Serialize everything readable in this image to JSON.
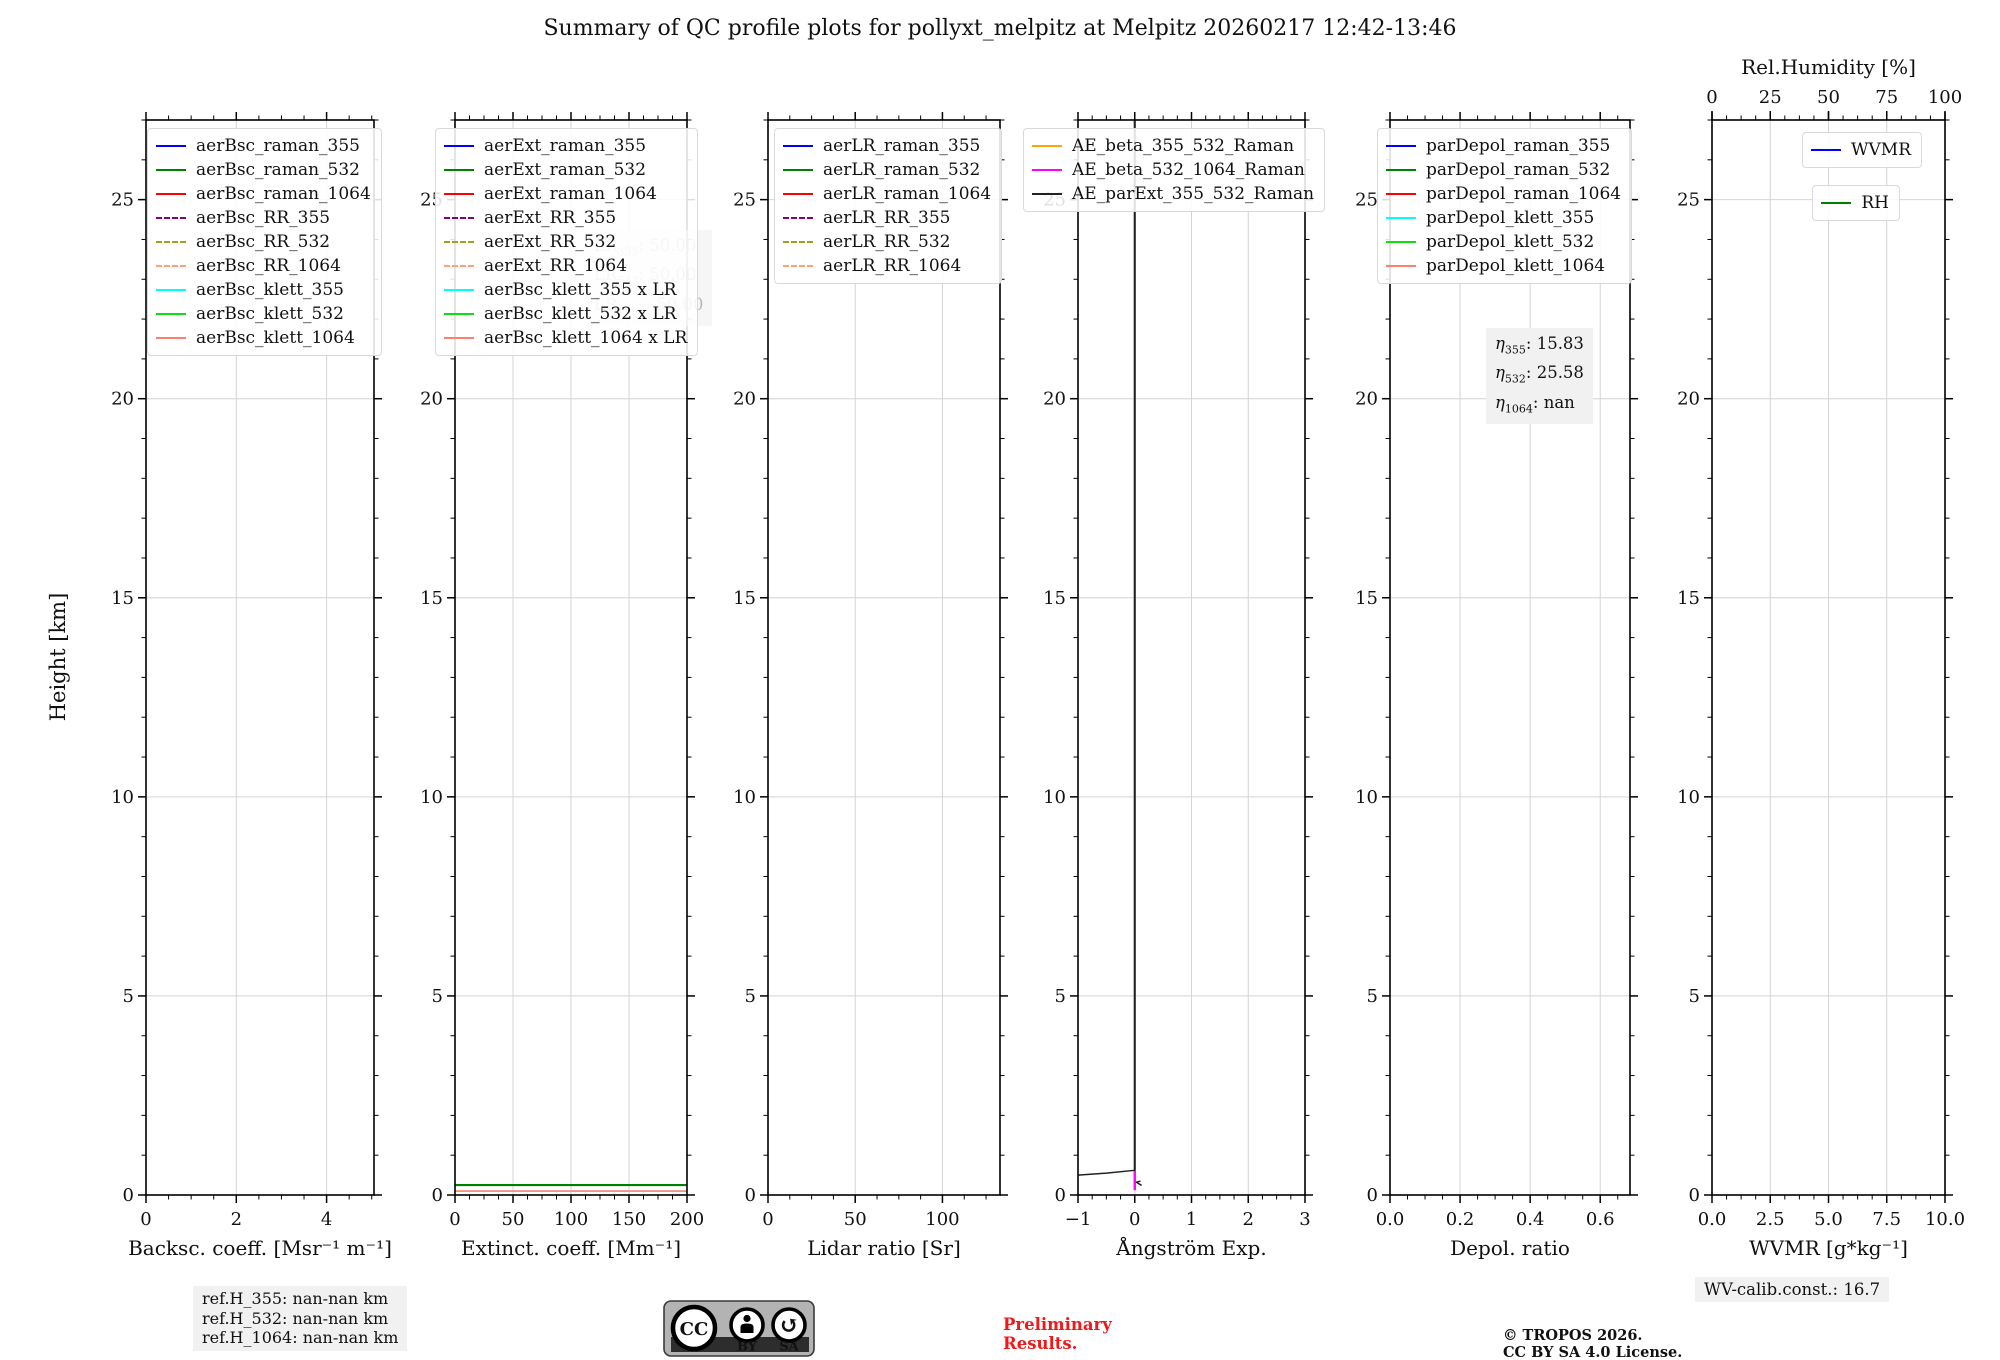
{
  "title": "Summary of QC profile plots for pollyxt_melpitz at Melpitz 20260217 12:42-13:46",
  "ylabel": "Height [km]",
  "footer": {
    "ref_h_lines": [
      "ref.H_355: nan-nan km",
      "ref.H_532: nan-nan km",
      "ref.H_1064: nan-nan km"
    ],
    "preliminary_line1": "Preliminary",
    "preliminary_line2": "Results.",
    "copyright_line1": "© TROPOS 2026.",
    "copyright_line2": "CC BY SA 4.0 License.",
    "wv_calib": "WV-calib.const.: 16.7",
    "badge": {
      "cc": "CC",
      "by": "BY",
      "sa": "SA"
    }
  },
  "chart_data": [
    {
      "id": "backscatter",
      "type": "line",
      "xlabel": "Backsc. coeff. [Msr⁻¹ m⁻¹]",
      "xlim": [
        0,
        5.05
      ],
      "xticks": [
        0,
        2,
        4
      ],
      "xtick_labels": [
        "0",
        "2",
        "4"
      ],
      "ylim": [
        0,
        27
      ],
      "yticks": [
        0,
        5,
        10,
        15,
        20,
        25
      ],
      "grid": true,
      "legend": [
        {
          "label": "aerBsc_raman_355",
          "color": "#0000ff",
          "dash": false
        },
        {
          "label": "aerBsc_raman_532",
          "color": "#008000",
          "dash": false
        },
        {
          "label": "aerBsc_raman_1064",
          "color": "#ff0000",
          "dash": false
        },
        {
          "label": "aerBsc_RR_355",
          "color": "#800080",
          "dash": true
        },
        {
          "label": "aerBsc_RR_532",
          "color": "#a0a020",
          "dash": true
        },
        {
          "label": "aerBsc_RR_1064",
          "color": "#ffa07a",
          "dash": true
        },
        {
          "label": "aerBsc_klett_355",
          "color": "#00ffff",
          "dash": false
        },
        {
          "label": "aerBsc_klett_532",
          "color": "#11dd11",
          "dash": false
        },
        {
          "label": "aerBsc_klett_1064",
          "color": "#fa8072",
          "dash": false
        }
      ],
      "series": []
    },
    {
      "id": "extinction",
      "type": "line",
      "xlabel": "Extinct. coeff. [Mm⁻¹]",
      "xlim": [
        0,
        200
      ],
      "xticks": [
        0,
        50,
        100,
        150,
        200
      ],
      "xtick_labels": [
        "0",
        "50",
        "100",
        "150",
        "200"
      ],
      "ylim": [
        0,
        27
      ],
      "yticks": [
        0,
        5,
        10,
        15,
        20,
        25
      ],
      "grid": true,
      "legend": [
        {
          "label": "aerExt_raman_355",
          "color": "#0000ff",
          "dash": false
        },
        {
          "label": "aerExt_raman_532",
          "color": "#008000",
          "dash": false
        },
        {
          "label": "aerExt_raman_1064",
          "color": "#ff0000",
          "dash": false
        },
        {
          "label": "aerExt_RR_355",
          "color": "#800080",
          "dash": true
        },
        {
          "label": "aerExt_RR_532",
          "color": "#a0a020",
          "dash": true
        },
        {
          "label": "aerExt_RR_1064",
          "color": "#ffa07a",
          "dash": true
        },
        {
          "label": "aerBsc_klett_355 x LR",
          "color": "#00ffff",
          "dash": false
        },
        {
          "label": "aerBsc_klett_532 x LR",
          "color": "#11dd11",
          "dash": false
        },
        {
          "label": "aerBsc_klett_1064 x LR",
          "color": "#fa8072",
          "dash": false
        }
      ],
      "annotations": [
        {
          "pre": "LR",
          "sub": "355",
          "post": ": 50.00"
        },
        {
          "pre": "LR",
          "sub": "532",
          "post": ": 50.00"
        },
        {
          "pre": "LR",
          "sub": "1064",
          "post": ": 50.00"
        }
      ],
      "series": [
        {
          "name": "aerBsc_klett_1064 x LR",
          "color": "#fa8072",
          "width": 1.6,
          "points": [
            [
              0,
              0.1
            ],
            [
              200,
              0.1
            ]
          ]
        },
        {
          "name": "aerExt_raman_532",
          "color": "#008000",
          "width": 2.2,
          "points": [
            [
              0,
              0.25
            ],
            [
              200,
              0.25
            ]
          ]
        }
      ]
    },
    {
      "id": "lidar-ratio",
      "type": "line",
      "xlabel": "Lidar ratio [Sr]",
      "xlim": [
        0,
        133
      ],
      "xticks": [
        0,
        50,
        100
      ],
      "xtick_labels": [
        "0",
        "50",
        "100"
      ],
      "ylim": [
        0,
        27
      ],
      "yticks": [
        0,
        5,
        10,
        15,
        20,
        25
      ],
      "grid": true,
      "legend": [
        {
          "label": "aerLR_raman_355",
          "color": "#0000ff",
          "dash": false
        },
        {
          "label": "aerLR_raman_532",
          "color": "#008000",
          "dash": false
        },
        {
          "label": "aerLR_raman_1064",
          "color": "#ff0000",
          "dash": false
        },
        {
          "label": "aerLR_RR_355",
          "color": "#800080",
          "dash": true
        },
        {
          "label": "aerLR_RR_532",
          "color": "#a0a020",
          "dash": true
        },
        {
          "label": "aerLR_RR_1064",
          "color": "#ffa07a",
          "dash": true
        }
      ],
      "series": []
    },
    {
      "id": "angstrom",
      "type": "line",
      "xlabel": "Ångström Exp.",
      "xlim": [
        -1,
        3
      ],
      "xticks": [
        -1,
        0,
        1,
        2,
        3
      ],
      "xtick_labels": [
        "−1",
        "0",
        "1",
        "2",
        "3"
      ],
      "ylim": [
        0,
        27
      ],
      "yticks": [
        0,
        5,
        10,
        15,
        20,
        25
      ],
      "grid": true,
      "legend": [
        {
          "label": "AE_beta_355_532_Raman",
          "color": "#ffa500",
          "dash": false
        },
        {
          "label": "AE_beta_532_1064_Raman",
          "color": "#ff00ff",
          "dash": false
        },
        {
          "label": "AE_parExt_355_532_Raman",
          "color": "#222222",
          "dash": false
        }
      ],
      "series": [
        {
          "name": "AE_beta_532_1064_Raman",
          "color": "#ff00ff",
          "width": 2.4,
          "points": [
            [
              0,
              0.12
            ],
            [
              0,
              27
            ]
          ]
        },
        {
          "name": "AE_parExt_355_532_Raman",
          "color": "#222222",
          "width": 1.5,
          "points": [
            [
              -1,
              0.5
            ],
            [
              -0.5,
              0.55
            ],
            [
              0,
              0.62
            ],
            [
              0,
              27
            ]
          ]
        },
        {
          "name": "AE_parExt_355_532_Raman_marker",
          "color": "#222222",
          "width": 1.5,
          "points": [
            [
              0.12,
              0.24
            ],
            [
              0.03,
              0.32
            ],
            [
              0.1,
              0.35
            ]
          ]
        }
      ]
    },
    {
      "id": "depol-ratio",
      "type": "line",
      "xlabel": "Depol. ratio",
      "xlim": [
        0,
        0.685
      ],
      "xticks": [
        0,
        0.2,
        0.4,
        0.6
      ],
      "xtick_labels": [
        "0.0",
        "0.2",
        "0.4",
        "0.6"
      ],
      "ylim": [
        0,
        27
      ],
      "yticks": [
        0,
        5,
        10,
        15,
        20,
        25
      ],
      "grid": true,
      "legend": [
        {
          "label": "parDepol_raman_355",
          "color": "#0000ff",
          "dash": false
        },
        {
          "label": "parDepol_raman_532",
          "color": "#008000",
          "dash": false
        },
        {
          "label": "parDepol_raman_1064",
          "color": "#ff0000",
          "dash": false
        },
        {
          "label": "parDepol_klett_355",
          "color": "#00ffff",
          "dash": false
        },
        {
          "label": "parDepol_klett_532",
          "color": "#11dd11",
          "dash": false
        },
        {
          "label": "parDepol_klett_1064",
          "color": "#fa8072",
          "dash": false
        }
      ],
      "annotations": [
        {
          "pre": "η",
          "sub": "355",
          "post": ": 15.83"
        },
        {
          "pre": "η",
          "sub": "532",
          "post": ": 25.58"
        },
        {
          "pre": "η",
          "sub": "1064",
          "post": ": nan"
        }
      ],
      "series": []
    },
    {
      "id": "wvmr",
      "type": "line",
      "xlabel": "WVMR [g*kg⁻¹]",
      "xlim": [
        0,
        10
      ],
      "xticks": [
        0,
        2.5,
        5,
        7.5,
        10
      ],
      "xtick_labels": [
        "0.0",
        "2.5",
        "5.0",
        "7.5",
        "10.0"
      ],
      "ylim": [
        0,
        27
      ],
      "yticks": [
        0,
        5,
        10,
        15,
        20,
        25
      ],
      "grid": true,
      "top_axis": {
        "label": "Rel.Humidity [%]",
        "lim": [
          0,
          100
        ],
        "ticks": [
          0,
          25,
          50,
          75,
          100
        ],
        "tick_labels": [
          "0",
          "25",
          "50",
          "75",
          "100"
        ]
      },
      "legend_boxes": [
        [
          {
            "label": "WVMR",
            "color": "#0000ff",
            "dash": false
          }
        ],
        [
          {
            "label": "RH",
            "color": "#008000",
            "dash": false
          }
        ]
      ],
      "series": []
    }
  ]
}
